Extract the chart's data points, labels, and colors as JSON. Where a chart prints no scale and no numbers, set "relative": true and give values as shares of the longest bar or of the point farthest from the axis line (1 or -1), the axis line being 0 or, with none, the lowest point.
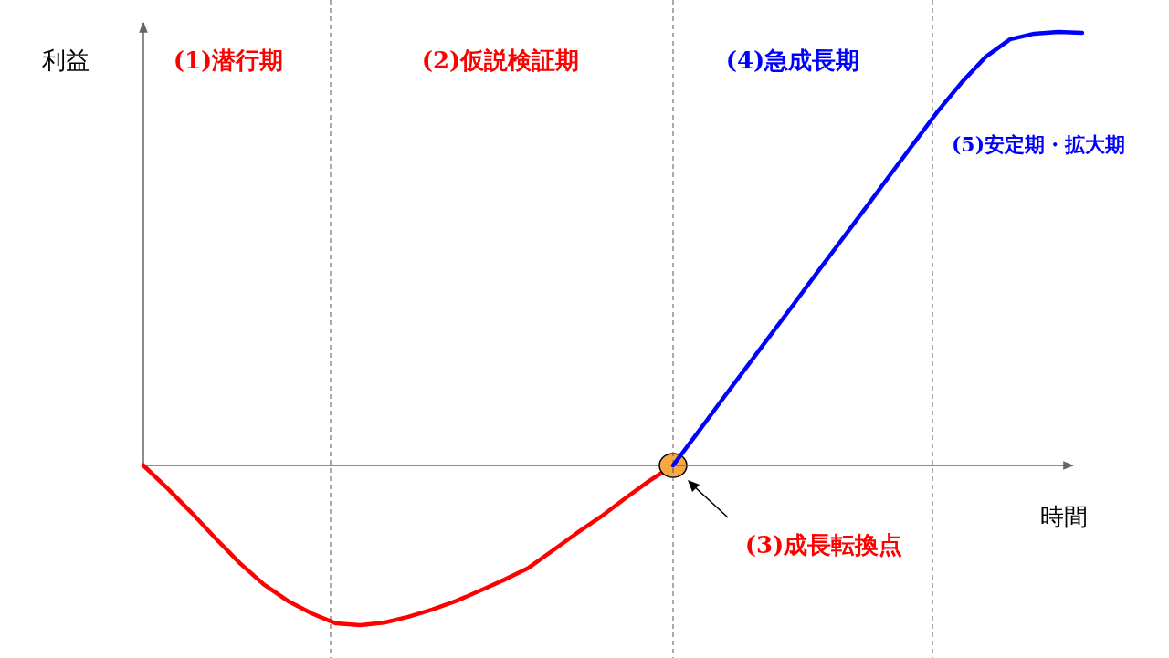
{
  "chart_data": [
    {
      "type": "line",
      "relative": true,
      "categories": [
        null,
        null,
        null,
        null,
        null,
        null,
        null,
        null,
        null,
        null,
        null,
        null,
        null,
        null,
        null,
        null,
        null,
        null,
        null,
        null,
        null,
        null,
        null
      ],
      "series": [
        {
          "color": "#ff0000",
          "values": [
            0,
            -0.144,
            -0.296,
            -0.457,
            -0.611,
            -0.745,
            -0.848,
            -0.927,
            -0.989,
            -1,
            -0.984,
            -0.948,
            -0.902,
            -0.848,
            -0.783,
            -0.715,
            -0.641,
            -0.533,
            -0.424,
            -0.321,
            -0.207,
            -0.098,
            0
          ]
        }
      ],
      "annotations": [
        "(1)潜行期",
        "(2)仮説検証期",
        "(3)成長転換点"
      ]
    },
    {
      "type": "line",
      "relative": true,
      "xlabel": "時間",
      "ylabel": "利益",
      "categories": [
        null,
        null,
        null,
        null,
        null,
        null,
        null,
        null,
        null,
        null,
        null,
        null,
        null,
        null,
        null,
        null,
        null,
        null
      ],
      "series": [
        {
          "color": "#0000ff",
          "values": [
            0,
            0.074,
            0.149,
            0.223,
            0.297,
            0.371,
            0.446,
            0.52,
            0.594,
            0.669,
            0.743,
            0.817,
            0.884,
            0.943,
            0.983,
            0.996,
            1,
            0.998
          ]
        }
      ],
      "annotations": [
        "(4)急成長期",
        "(5)安定期・拡大期"
      ]
    }
  ]
}
